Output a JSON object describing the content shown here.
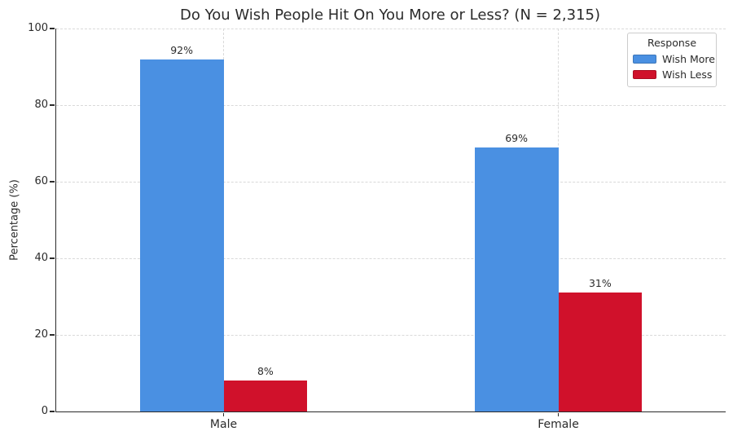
{
  "chart_data": {
    "type": "bar",
    "title": "Do You Wish People Hit On You More or Less? (N = 2,315)",
    "xlabel": "",
    "ylabel": "Percentage (%)",
    "categories": [
      "Male",
      "Female"
    ],
    "series": [
      {
        "name": "Wish More",
        "color": "#4a90e2",
        "values": [
          92,
          69
        ]
      },
      {
        "name": "Wish Less",
        "color": "#d0112b",
        "values": [
          8,
          31
        ]
      }
    ],
    "value_suffix": "%",
    "ylim": [
      0,
      100
    ],
    "yticks": [
      0,
      20,
      40,
      60,
      80,
      100
    ],
    "grid": "dashed-both-axes",
    "legend": {
      "title": "Response",
      "position": "upper right"
    }
  }
}
